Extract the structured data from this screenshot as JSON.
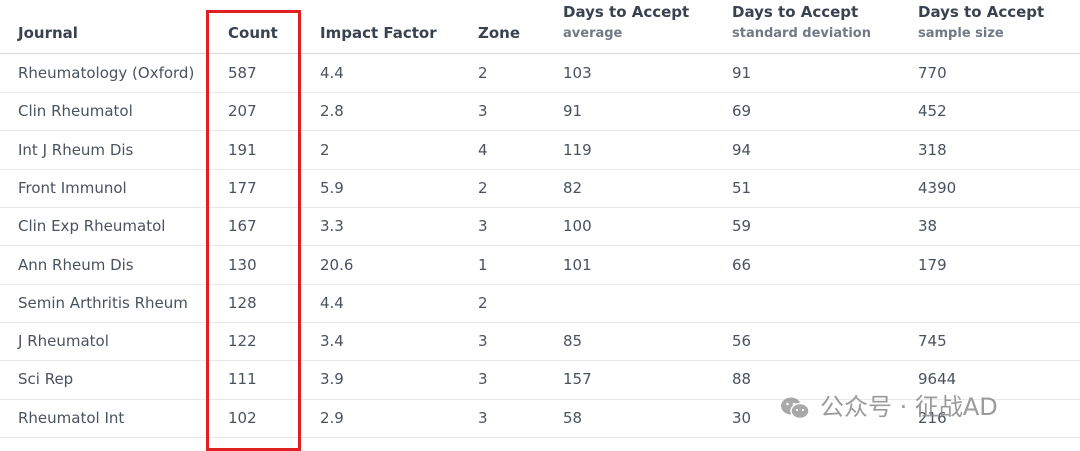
{
  "table": {
    "columns": [
      {
        "title": "Journal"
      },
      {
        "title": "Count"
      },
      {
        "title": "Impact Factor"
      },
      {
        "title": "Zone"
      },
      {
        "title": "Days to Accept",
        "subtitle": "average"
      },
      {
        "title": "Days to Accept",
        "subtitle": "standard deviation"
      },
      {
        "title": "Days to Accept",
        "subtitle": "sample size"
      }
    ],
    "rows": [
      [
        "Rheumatology (Oxford)",
        587,
        4.4,
        2,
        103,
        91,
        770
      ],
      [
        "Clin Rheumatol",
        207,
        2.8,
        3,
        91,
        69,
        452
      ],
      [
        "Int J Rheum Dis",
        191,
        2,
        4,
        119,
        94,
        318
      ],
      [
        "Front Immunol",
        177,
        5.9,
        2,
        82,
        51,
        4390
      ],
      [
        "Clin Exp Rheumatol",
        167,
        3.3,
        3,
        100,
        59,
        38
      ],
      [
        "Ann Rheum Dis",
        130,
        20.6,
        1,
        101,
        66,
        179
      ],
      [
        "Semin Arthritis Rheum",
        128,
        4.4,
        2,
        null,
        null,
        null
      ],
      [
        "J Rheumatol",
        122,
        3.4,
        3,
        85,
        56,
        745
      ],
      [
        "Sci Rep",
        111,
        3.9,
        3,
        157,
        88,
        9644
      ],
      [
        "Rheumatol Int",
        102,
        2.9,
        3,
        58,
        30,
        216
      ]
    ]
  },
  "watermark": "公众号 · 征战AD"
}
